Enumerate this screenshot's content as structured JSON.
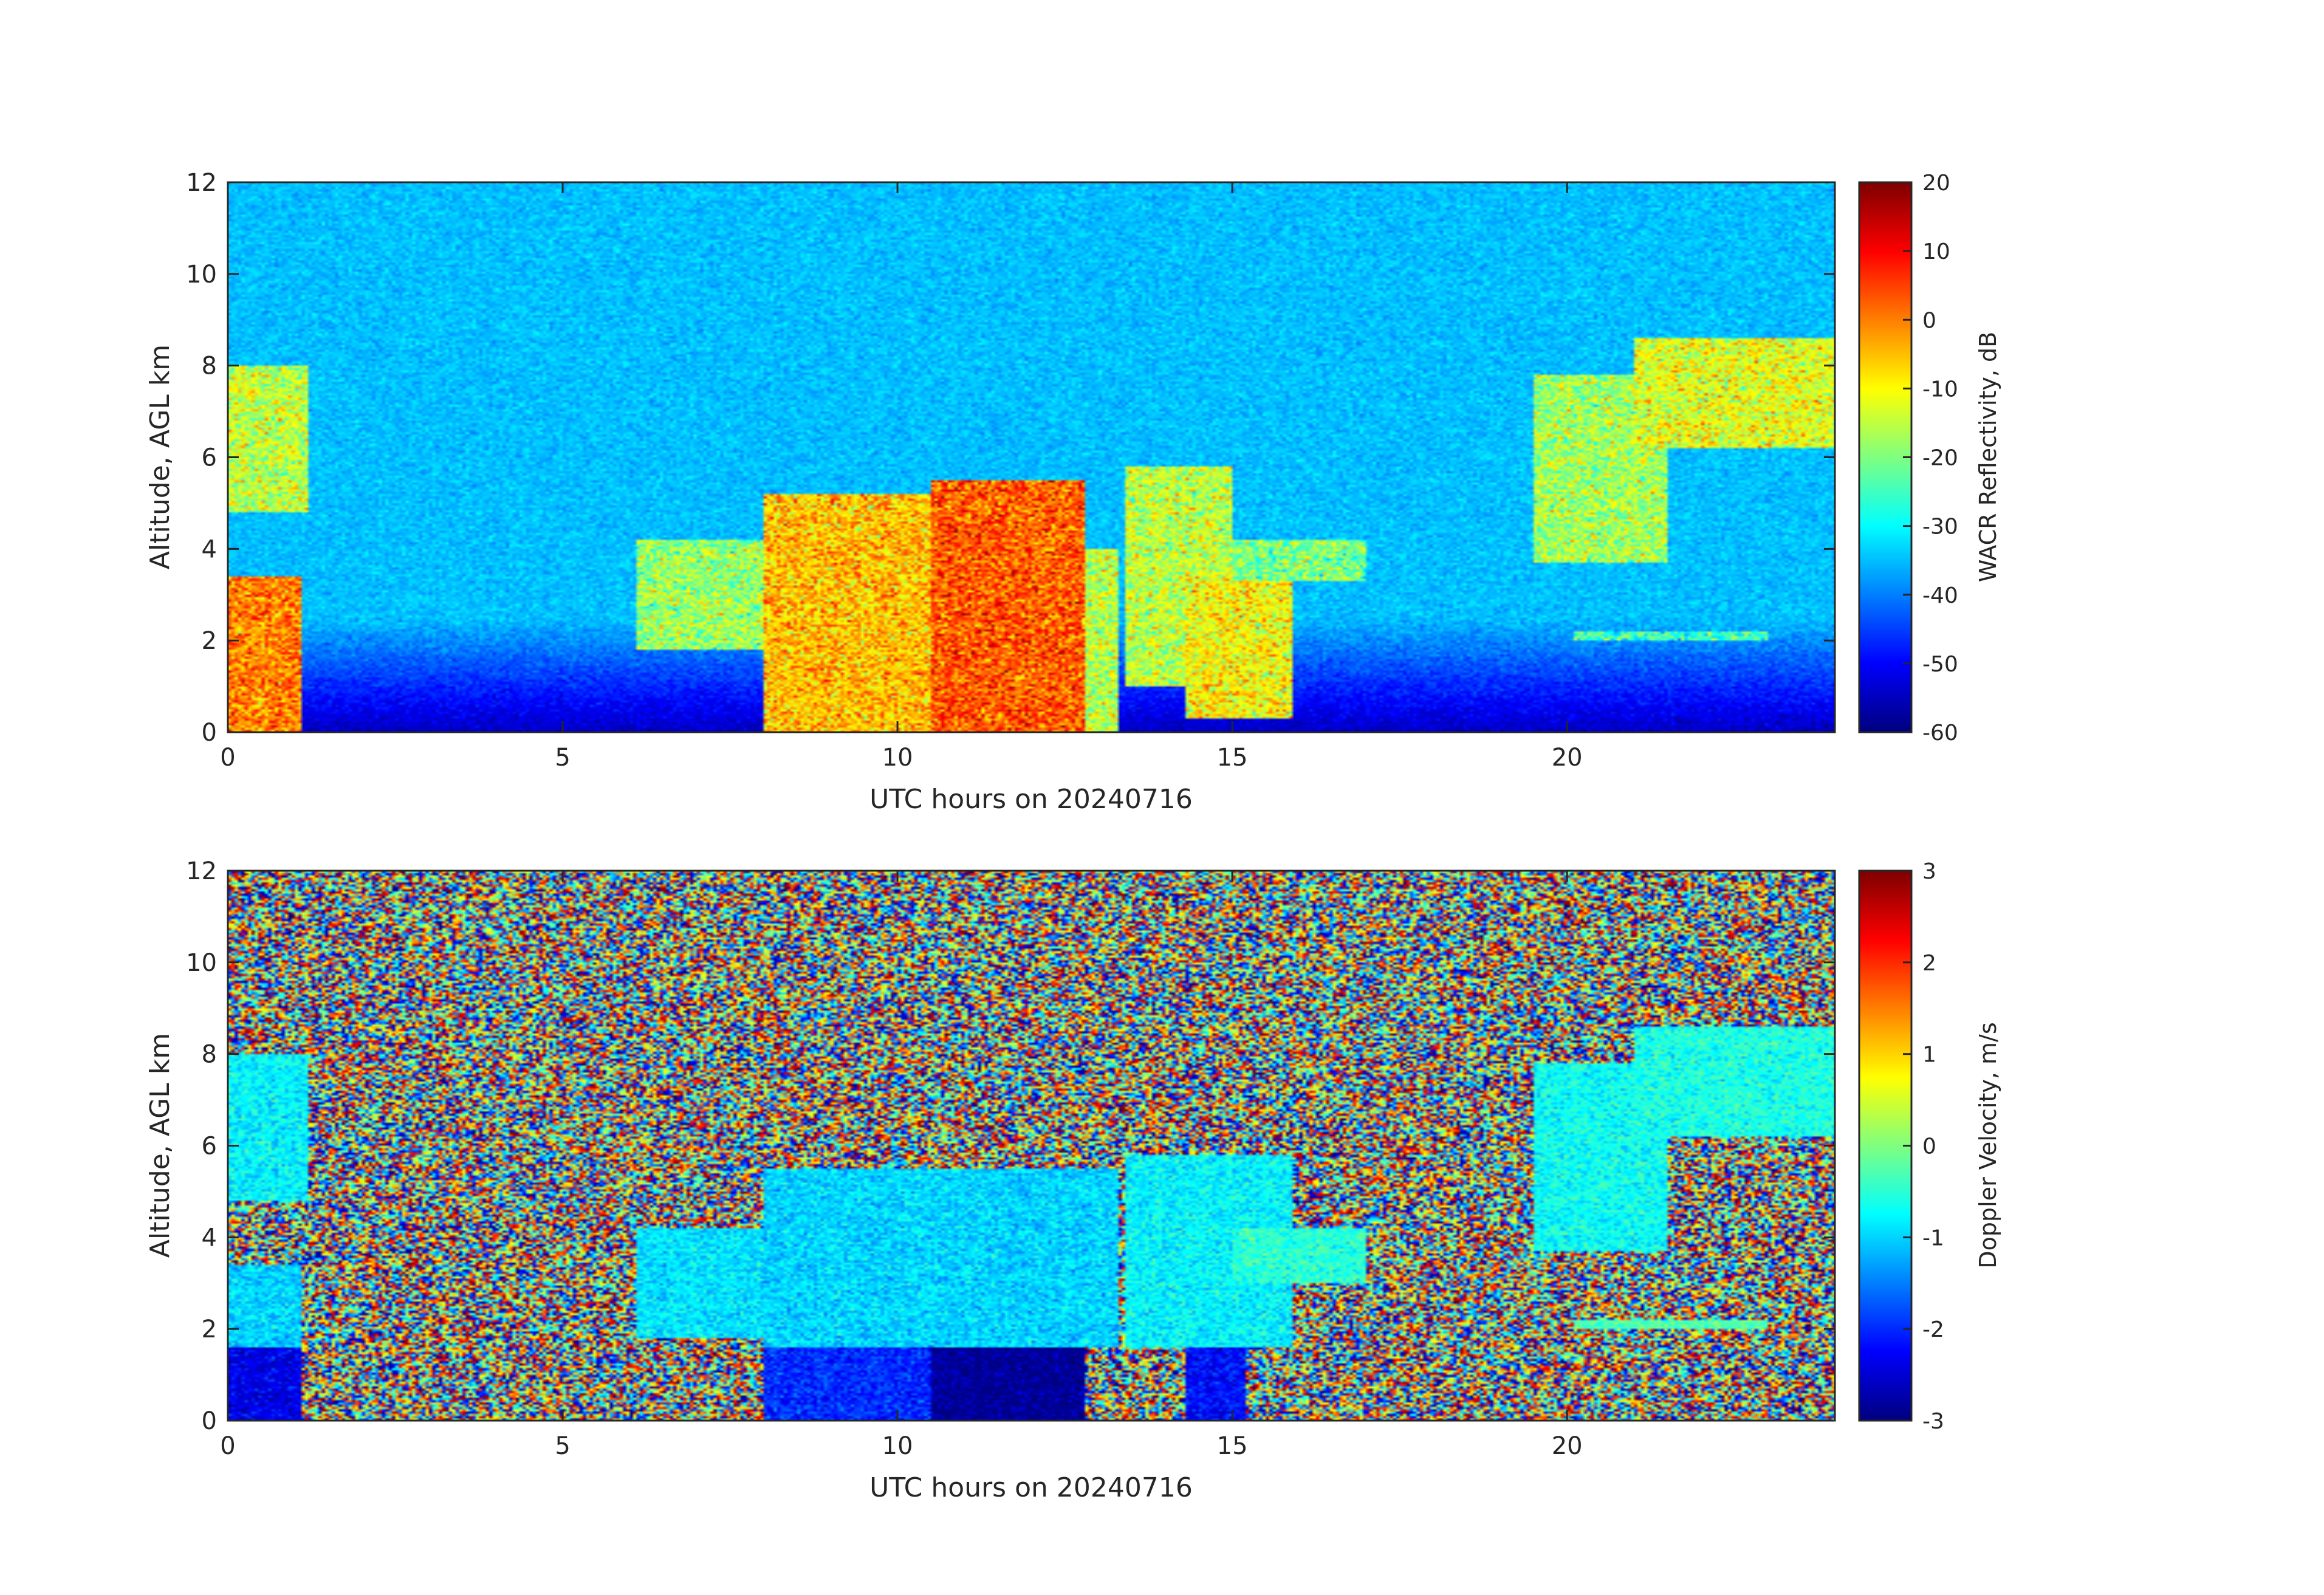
{
  "chart_data": [
    {
      "type": "heatmap",
      "xlabel": "UTC hours on 20240716",
      "ylabel": "Altitude, AGL km",
      "xlim": [
        0,
        24
      ],
      "ylim": [
        0,
        12
      ],
      "xticks": [
        0,
        5,
        10,
        15,
        20
      ],
      "yticks": [
        0,
        2,
        4,
        6,
        8,
        10,
        12
      ],
      "colorbar": {
        "label": "WACR Reflectivity, dB",
        "range": [
          -60,
          20
        ],
        "ticks": [
          20,
          10,
          0,
          -10,
          -20,
          -30,
          -40,
          -50,
          -60
        ],
        "colormap": "jet"
      },
      "background_value": -35,
      "cloud_regions": [
        {
          "x": [
            0.0,
            1.2
          ],
          "y": [
            4.8,
            8.0
          ],
          "value": -15
        },
        {
          "x": [
            0.0,
            1.1
          ],
          "y": [
            0.0,
            3.4
          ],
          "value": 0
        },
        {
          "x": [
            6.1,
            8.0
          ],
          "y": [
            1.8,
            4.2
          ],
          "value": -18
        },
        {
          "x": [
            8.0,
            10.5
          ],
          "y": [
            0.0,
            5.2
          ],
          "value": -5
        },
        {
          "x": [
            10.5,
            12.8
          ],
          "y": [
            0.0,
            5.5
          ],
          "value": 3
        },
        {
          "x": [
            12.8,
            13.3
          ],
          "y": [
            0.0,
            4.0
          ],
          "value": -15
        },
        {
          "x": [
            13.4,
            15.0
          ],
          "y": [
            1.0,
            5.8
          ],
          "value": -15
        },
        {
          "x": [
            14.3,
            15.9
          ],
          "y": [
            0.3,
            3.5
          ],
          "value": -10
        },
        {
          "x": [
            15.0,
            17.0
          ],
          "y": [
            3.3,
            4.2
          ],
          "value": -20
        },
        {
          "x": [
            19.5,
            21.5
          ],
          "y": [
            3.7,
            7.8
          ],
          "value": -17
        },
        {
          "x": [
            21.0,
            24.0
          ],
          "y": [
            6.2,
            8.6
          ],
          "value": -12
        },
        {
          "x": [
            20.1,
            23.0
          ],
          "y": [
            2.0,
            2.2
          ],
          "value": -25
        }
      ]
    },
    {
      "type": "heatmap",
      "xlabel": "UTC hours on 20240716",
      "ylabel": "Altitude, AGL km",
      "xlim": [
        0,
        24
      ],
      "ylim": [
        0,
        12
      ],
      "xticks": [
        0,
        5,
        10,
        15,
        20
      ],
      "yticks": [
        0,
        2,
        4,
        6,
        8,
        10,
        12
      ],
      "colorbar": {
        "label": "Doppler Velocity, m/s",
        "range": [
          -3,
          3
        ],
        "ticks": [
          3,
          2,
          1,
          0,
          -1,
          -2,
          -3
        ],
        "colormap": "jet"
      },
      "background": "random noise",
      "cloud_regions": [
        {
          "x": [
            0.0,
            1.2
          ],
          "y": [
            4.8,
            8.0
          ],
          "value": -0.8
        },
        {
          "x": [
            0.0,
            1.1
          ],
          "y": [
            1.6,
            3.4
          ],
          "value": -1.0
        },
        {
          "x": [
            0.0,
            1.1
          ],
          "y": [
            0.0,
            1.6
          ],
          "value": -2.4
        },
        {
          "x": [
            6.1,
            8.0
          ],
          "y": [
            1.8,
            4.2
          ],
          "value": -0.9
        },
        {
          "x": [
            8.0,
            13.3
          ],
          "y": [
            1.6,
            5.5
          ],
          "value": -1.0
        },
        {
          "x": [
            8.0,
            10.5
          ],
          "y": [
            0.0,
            1.6
          ],
          "value": -2.0
        },
        {
          "x": [
            10.5,
            12.8
          ],
          "y": [
            0.0,
            1.6
          ],
          "value": -2.9
        },
        {
          "x": [
            13.4,
            15.9
          ],
          "y": [
            1.6,
            5.8
          ],
          "value": -0.8
        },
        {
          "x": [
            14.3,
            15.2
          ],
          "y": [
            0.0,
            1.6
          ],
          "value": -2.2
        },
        {
          "x": [
            15.0,
            17.0
          ],
          "y": [
            3.0,
            4.2
          ],
          "value": -0.5
        },
        {
          "x": [
            19.5,
            21.5
          ],
          "y": [
            3.7,
            7.8
          ],
          "value": -0.7
        },
        {
          "x": [
            21.0,
            24.0
          ],
          "y": [
            6.2,
            8.6
          ],
          "value": -0.6
        },
        {
          "x": [
            20.1,
            23.0
          ],
          "y": [
            2.0,
            2.2
          ],
          "value": -0.3
        }
      ]
    }
  ]
}
